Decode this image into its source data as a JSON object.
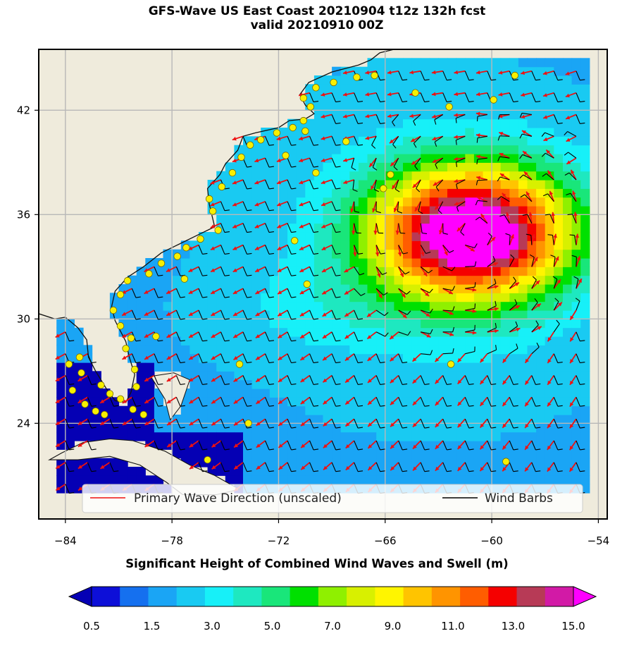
{
  "title": {
    "line1": "GFS-Wave US East Coast 20210904 t12z 132h fcst",
    "line2": "valid 20210910 00Z"
  },
  "map": {
    "lon_range": [
      -85.5,
      -53.5
    ],
    "lat_range": [
      18.5,
      45.5
    ],
    "x_ticks": [
      -84,
      -78,
      -72,
      -66,
      -60,
      -54
    ],
    "x_tick_labels": [
      "−84",
      "−78",
      "−72",
      "−66",
      "−60",
      "−54"
    ],
    "y_ticks": [
      24,
      30,
      36,
      42
    ],
    "y_tick_labels": [
      "24",
      "30",
      "36",
      "42"
    ],
    "grid": true,
    "land_color": "#efebdc",
    "storm_center": {
      "lon": -61,
      "lat": 35,
      "max_height_m": 15
    },
    "legend": {
      "items": [
        {
          "label": "Primary Wave Direction (unscaled)",
          "color": "#ee1111"
        },
        {
          "label": "Wind Barbs",
          "color": "#000000"
        }
      ],
      "placement": "bottom-center"
    }
  },
  "colorbar": {
    "title": "Significant Height of Combined Wind Waves and Swell (m)",
    "tick_labels": [
      "0.5",
      "1.5",
      "3.0",
      "5.0",
      "7.0",
      "9.0",
      "11.0",
      "13.0",
      "15.0"
    ],
    "colors": [
      "#0d0fd8",
      "#1570ef",
      "#1aa5f5",
      "#19caf2",
      "#17f0f8",
      "#1ee8c0",
      "#19e67a",
      "#00e000",
      "#8ff000",
      "#d8f000",
      "#fff500",
      "#ffc400",
      "#ff9400",
      "#ff5d00",
      "#f50000",
      "#b73a56",
      "#d21aa6"
    ],
    "under_color": "#0500b4",
    "over_color": "#ff00ff"
  }
}
